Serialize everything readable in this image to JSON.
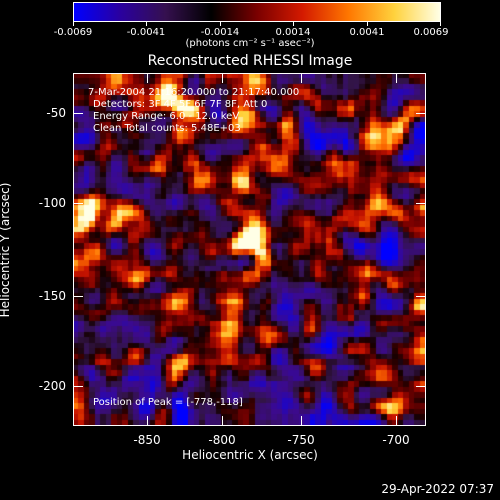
{
  "colorbar": {
    "tick_labels": [
      "-0.0069",
      "-0.0041",
      "-0.0014",
      "0.0014",
      "0.0041",
      "0.0069"
    ],
    "units": "(photons cm⁻² s⁻¹ asec⁻²)"
  },
  "plot": {
    "title": "Reconstructed RHESSI Image",
    "annotations": {
      "time": "7-Mar-2004 21:16:20.000 to 21:17:40.000",
      "detectors": "Detectors: 3F 4F 5F 6F 7F 8F, Att 0",
      "energy": "Energy Range: 6.0 - 12.0 keV",
      "clean": "Clean    Total counts: 5.48E+03",
      "peak": "Position of Peak = [-778,-118]"
    },
    "xlabel": "Heliocentric X (arcsec)",
    "ylabel": "Heliocentric Y (arcsec)",
    "x_ticks": [
      "-850",
      "-800",
      "-750",
      "-700"
    ],
    "y_ticks": [
      "-50",
      "-100",
      "-150",
      "-200"
    ],
    "x_range": [
      -882,
      -685
    ],
    "y_range": [
      -222,
      -26
    ],
    "peak": {
      "x": -778,
      "y": -118
    }
  },
  "footer": {
    "timestamp": "29-Apr-2022 07:37"
  },
  "colors": {
    "background": "#000000",
    "frame": "#ffffff",
    "colormap": [
      "#0000ff",
      "#2a00a0",
      "#35104f",
      "#000000",
      "#7a0000",
      "#d41a00",
      "#ff7700",
      "#ffd23d",
      "#ffffe6"
    ]
  }
}
